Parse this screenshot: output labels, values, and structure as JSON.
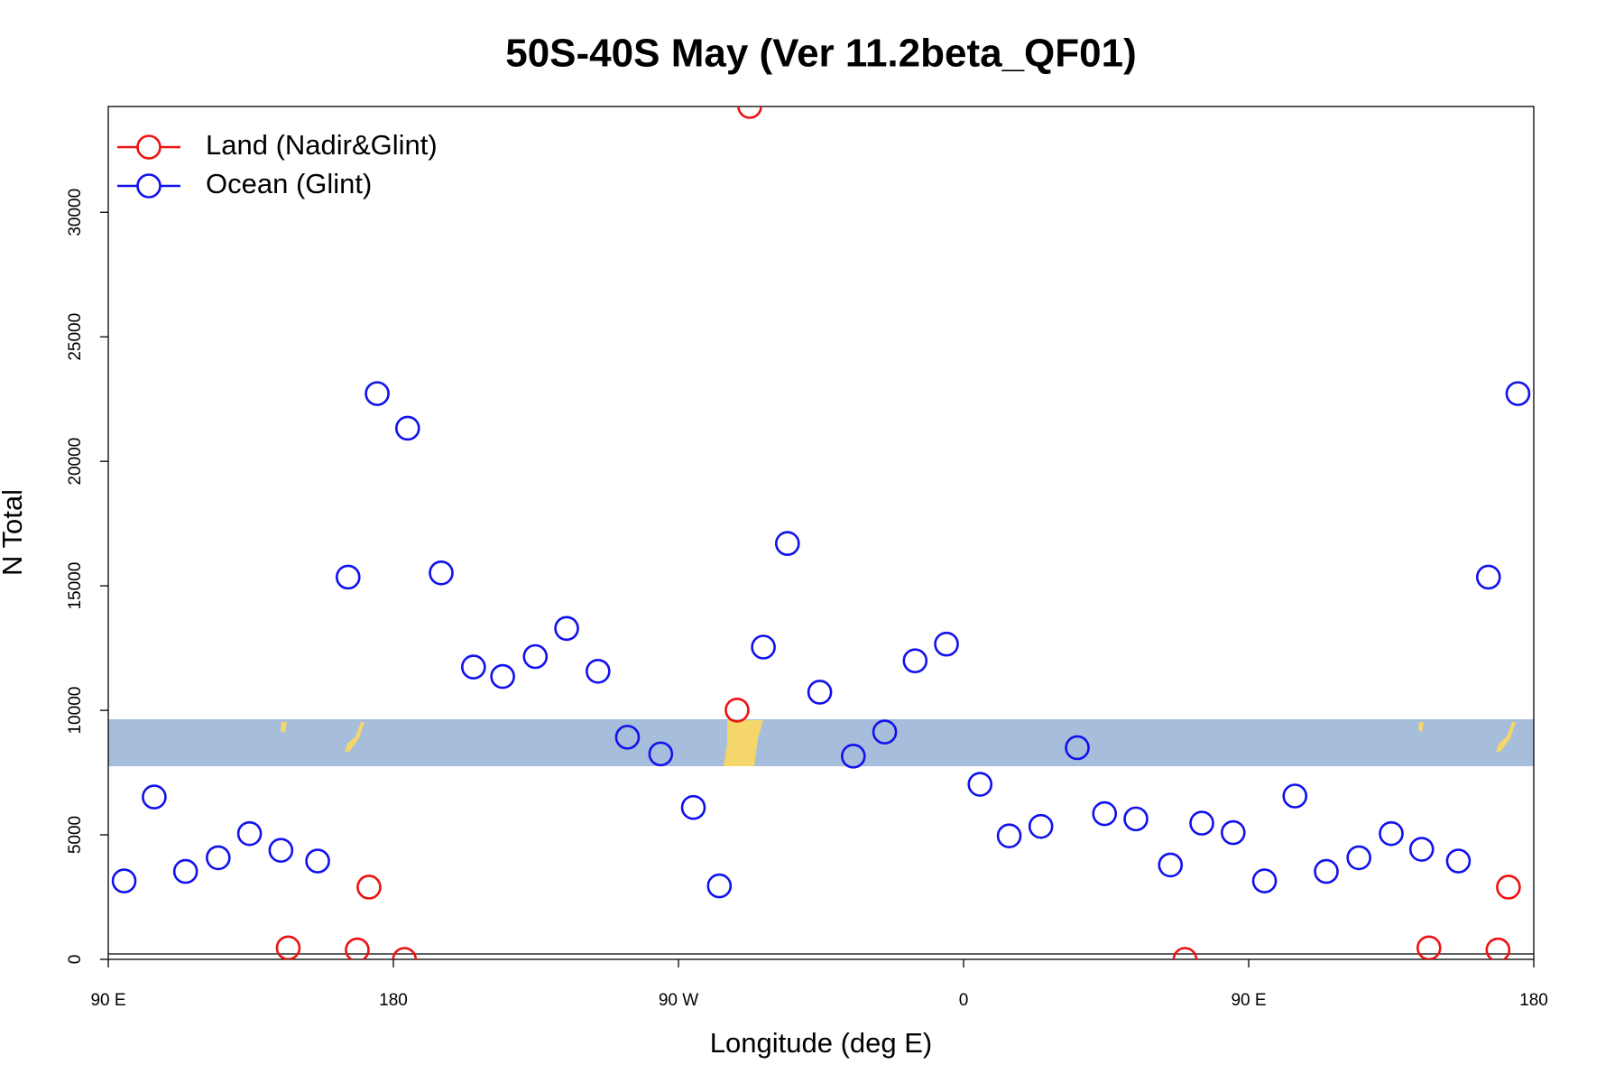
{
  "chart_data": {
    "type": "scatter",
    "title": "50S-40S May (Ver 11.2beta_QF01)",
    "x_label": "Longitude (deg E)",
    "y_label": "N Total",
    "xlim": [
      90,
      540
    ],
    "ylim": [
      0,
      34250
    ],
    "xticks": [
      {
        "value": 90,
        "label": "90 E"
      },
      180,
      {
        "value": 270,
        "label": "90 W"
      },
      {
        "value": 360,
        "label": "0"
      },
      {
        "value": 450,
        "label": "90 E"
      },
      {
        "value": 540,
        "label": "180"
      }
    ],
    "yticks": [
      0,
      5000,
      10000,
      15000,
      20000,
      25000,
      30000
    ],
    "legend": "top-left",
    "series": [
      {
        "name": "Land (Nadir&Glint)",
        "color": "#ee1111",
        "x": [
          146.8,
          168.6,
          172.3,
          183.5,
          288.5,
          292.5,
          429.9,
          506.9,
          528.7,
          532.0
        ],
        "values": [
          460,
          380,
          2900,
          0,
          10010,
          34250,
          0,
          460,
          380,
          2900
        ]
      },
      {
        "name": "Ocean (Glint)",
        "color": "#1111ee",
        "x": [
          95.0,
          104.5,
          114.4,
          124.7,
          134.6,
          144.5,
          156.1,
          165.7,
          174.9,
          184.5,
          195.1,
          205.3,
          214.5,
          224.8,
          234.7,
          244.6,
          253.9,
          264.4,
          274.7,
          282.9,
          296.8,
          304.4,
          314.6,
          325.2,
          335.1,
          344.7,
          354.6,
          365.2,
          374.4,
          384.4,
          395.9,
          404.5,
          414.4,
          425.3,
          435.2,
          445.1,
          455.0,
          464.6,
          474.5,
          484.8,
          495.0,
          504.6,
          516.2,
          525.7,
          535.0
        ],
        "values": [
          3150,
          6520,
          3530,
          4080,
          5050,
          4380,
          3950,
          15350,
          22720,
          21330,
          15520,
          11740,
          11360,
          12160,
          13290,
          11570,
          8920,
          8250,
          6100,
          2950,
          12540,
          16700,
          10730,
          8160,
          9130,
          11990,
          12660,
          7030,
          4960,
          5340,
          8500,
          5850,
          5640,
          3790,
          5470,
          5090,
          3150,
          6560,
          3530,
          4080,
          5050,
          4420,
          3950,
          15350,
          22720
        ]
      }
    ]
  }
}
